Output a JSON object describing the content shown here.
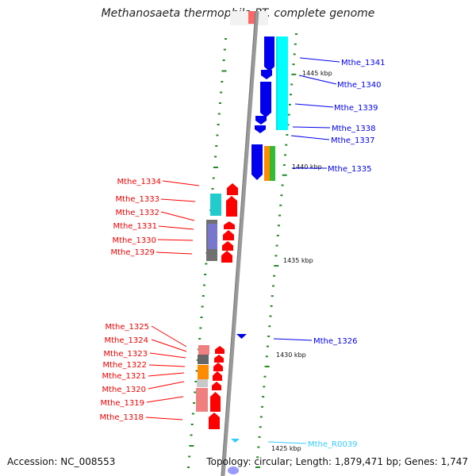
{
  "title": "Methanosaeta thermophila PT, complete genome",
  "footer": {
    "accession": "Accession: NC_008553",
    "topology": "Topology: circular; Length: 1,879,471 bp; Genes: 1,747"
  },
  "colors": {
    "forward_gene": "#ff0000",
    "reverse_gene": "#0000ee",
    "rna_gene": "#33ccff",
    "backbone": "#999999",
    "tick": "#228b22"
  },
  "scale_labels": [
    "1445 kbp",
    "1440 kbp",
    "1435 kbp",
    "1430 kbp",
    "1425 kbp"
  ],
  "genes_reverse": [
    "Mthe_1341",
    "Mthe_1340",
    "Mthe_1339",
    "Mthe_1338",
    "Mthe_1337",
    "Mthe_1335",
    "Mthe_1326"
  ],
  "genes_rna": [
    "Mthe_R0039"
  ],
  "genes_forward": [
    "Mthe_1334",
    "Mthe_1333",
    "Mthe_1332",
    "Mthe_1331",
    "Mthe_1330",
    "Mthe_1329",
    "Mthe_1325",
    "Mthe_1324",
    "Mthe_1323",
    "Mthe_1322",
    "Mthe_1321",
    "Mthe_1320",
    "Mthe_1319",
    "Mthe_1318"
  ]
}
